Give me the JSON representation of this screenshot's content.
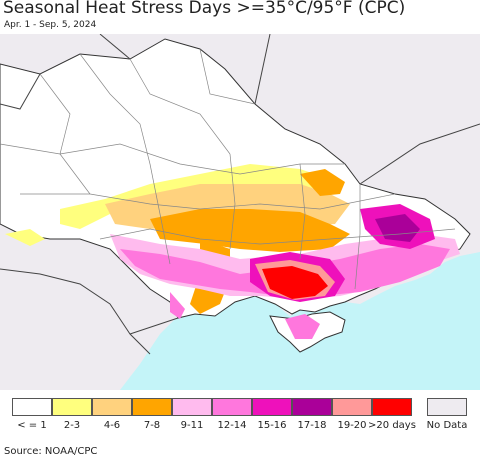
{
  "header": {
    "title": "Seasonal Heat Stress Days >=35°C/95°F (CPC)",
    "subtitle": "Apr. 1 - Sep. 5, 2024"
  },
  "map": {
    "land_color": "#ffffff",
    "outside_color": "#eeebf0",
    "sea_color": "#c4f4f8",
    "border_color": "#333333"
  },
  "legend": {
    "items": [
      {
        "label": "< = 1",
        "color": "#ffffff"
      },
      {
        "label": "2-3",
        "color": "#ffff7e"
      },
      {
        "label": "4-6",
        "color": "#ffd27e"
      },
      {
        "label": "7-8",
        "color": "#ffa500"
      },
      {
        "label": "9-11",
        "color": "#ffbbee"
      },
      {
        "label": "12-14",
        "color": "#ff77dd"
      },
      {
        "label": "15-16",
        "color": "#ee11bb"
      },
      {
        "label": "17-18",
        "color": "#aa0099"
      },
      {
        "label": "19-20",
        "color": "#ff9999"
      },
      {
        "label": ">20 days",
        "color": "#ff0000"
      }
    ],
    "no_data": {
      "label": "No Data",
      "color": "#eeebf0"
    }
  },
  "footer": {
    "source": "Source: NOAA/CPC"
  }
}
